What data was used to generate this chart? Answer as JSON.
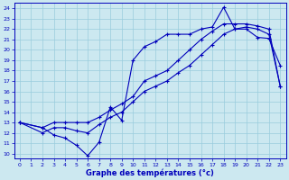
{
  "xlabel": "Graphe des températures (°c)",
  "ylabel_ticks": [
    10,
    11,
    12,
    13,
    14,
    15,
    16,
    17,
    18,
    19,
    20,
    21,
    22,
    23,
    24
  ],
  "xticks": [
    0,
    1,
    2,
    3,
    4,
    5,
    6,
    7,
    8,
    9,
    10,
    11,
    12,
    13,
    14,
    15,
    16,
    17,
    18,
    19,
    20,
    21,
    22,
    23
  ],
  "xlim": [
    -0.5,
    23.5
  ],
  "ylim": [
    9.5,
    24.5
  ],
  "bg_color": "#cce8f0",
  "line_color": "#0000bb",
  "grid_color": "#99ccdd",
  "line1_x": [
    0,
    2,
    3,
    4,
    5,
    6,
    7,
    8,
    9,
    10,
    11,
    12,
    13,
    14,
    15,
    16,
    17,
    18,
    19,
    20,
    21,
    22,
    23
  ],
  "line1_y": [
    13.0,
    12.5,
    11.8,
    11.5,
    10.8,
    9.8,
    11.1,
    14.5,
    13.2,
    19.0,
    20.3,
    20.8,
    21.5,
    21.5,
    21.5,
    22.0,
    22.2,
    24.1,
    22.0,
    22.0,
    21.2,
    21.1,
    18.5
  ],
  "line2_x": [
    0,
    2,
    3,
    4,
    5,
    6,
    7,
    8,
    9,
    10,
    11,
    12,
    13,
    14,
    15,
    16,
    17,
    18,
    19,
    20,
    21,
    22,
    23
  ],
  "line2_y": [
    13.0,
    12.0,
    12.5,
    12.5,
    12.2,
    12.0,
    12.8,
    13.5,
    14.0,
    15.0,
    16.0,
    16.5,
    17.0,
    17.8,
    18.5,
    19.5,
    20.5,
    21.5,
    22.0,
    22.2,
    22.0,
    21.5,
    16.5
  ],
  "line3_x": [
    0,
    2,
    3,
    4,
    5,
    6,
    7,
    8,
    9,
    10,
    11,
    12,
    13,
    14,
    15,
    16,
    17,
    18,
    19,
    20,
    21,
    22,
    23
  ],
  "line3_y": [
    13.0,
    12.5,
    13.0,
    13.0,
    13.0,
    13.0,
    13.5,
    14.2,
    14.8,
    15.5,
    17.0,
    17.5,
    18.0,
    19.0,
    20.0,
    21.0,
    21.8,
    22.5,
    22.5,
    22.5,
    22.3,
    22.0,
    16.5
  ]
}
